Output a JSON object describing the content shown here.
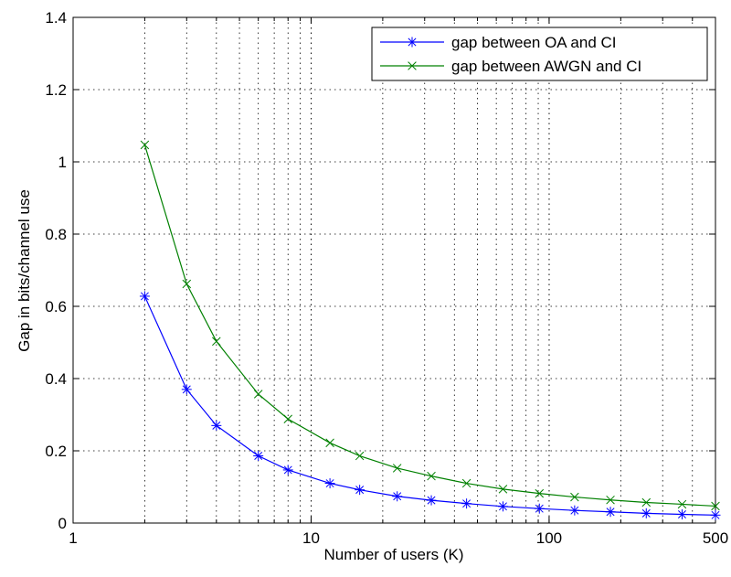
{
  "chart_data": {
    "type": "line",
    "title": "",
    "xlabel": "Number of users (K)",
    "ylabel": "Gap in bits/channel use",
    "xscale": "log",
    "xlim": [
      1,
      500
    ],
    "ylim": [
      0,
      1.4
    ],
    "xticks": [
      1,
      10,
      100,
      500
    ],
    "xtick_labels": [
      "1",
      "10",
      "100",
      "500"
    ],
    "yticks": [
      0,
      0.2,
      0.4,
      0.6,
      0.8,
      1,
      1.2,
      1.4
    ],
    "ytick_labels": [
      "0",
      "0.2",
      "0.4",
      "0.6",
      "0.8",
      "1",
      "1.2",
      "1.4"
    ],
    "grid": true,
    "legend_position": "top-right",
    "series": [
      {
        "name": "gap between OA and CI",
        "color": "#0000ff",
        "marker": "asterisk",
        "x": [
          2,
          3,
          4,
          6,
          8,
          12,
          16,
          23,
          32,
          45,
          64,
          91,
          128,
          181,
          256,
          362,
          500
        ],
        "y": [
          0.628,
          0.37,
          0.27,
          0.186,
          0.147,
          0.11,
          0.092,
          0.074,
          0.063,
          0.054,
          0.046,
          0.04,
          0.035,
          0.031,
          0.027,
          0.024,
          0.022
        ]
      },
      {
        "name": "gap between AWGN and CI",
        "color": "#008000",
        "marker": "x",
        "x": [
          2,
          3,
          4,
          6,
          8,
          12,
          16,
          23,
          32,
          45,
          64,
          91,
          128,
          181,
          256,
          362,
          500
        ],
        "y": [
          1.047,
          0.662,
          0.503,
          0.357,
          0.288,
          0.222,
          0.186,
          0.152,
          0.13,
          0.11,
          0.094,
          0.082,
          0.072,
          0.064,
          0.057,
          0.052,
          0.047
        ]
      }
    ]
  }
}
